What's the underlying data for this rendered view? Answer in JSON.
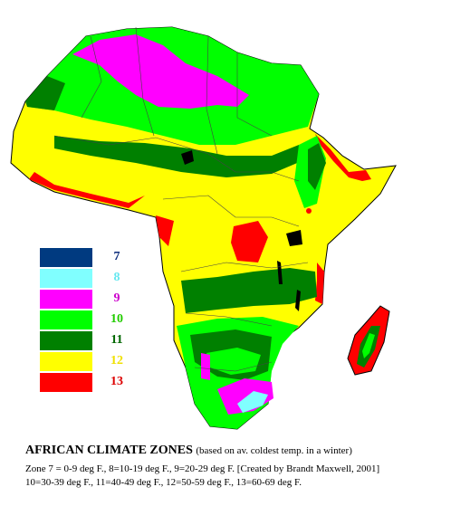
{
  "map": {
    "title": "AFRICAN CLIMATE ZONES",
    "subtitle": "(based on av. coldest temp. in a winter)",
    "caption_line1": "Zone 7 = 0-9 deg F., 8=10-19 deg F., 9=20-29 deg F. [Created by Brandt Maxwell, 2001]",
    "caption_line2": "10=30-39 deg F., 11=40-49 deg F., 12=50-59 deg F., 13=60-69 deg F."
  },
  "legend": [
    {
      "zone": "7",
      "color": "#003a80",
      "text_color": "#0a2a7a"
    },
    {
      "zone": "8",
      "color": "#80ffff",
      "text_color": "#66e8f0"
    },
    {
      "zone": "9",
      "color": "#ff00ff",
      "text_color": "#cc00cc"
    },
    {
      "zone": "10",
      "color": "#00ff00",
      "text_color": "#22cc00"
    },
    {
      "zone": "11",
      "color": "#008000",
      "text_color": "#006600"
    },
    {
      "zone": "12",
      "color": "#ffff00",
      "text_color": "#f0e000"
    },
    {
      "zone": "13",
      "color": "#ff0000",
      "text_color": "#dd0000"
    }
  ]
}
